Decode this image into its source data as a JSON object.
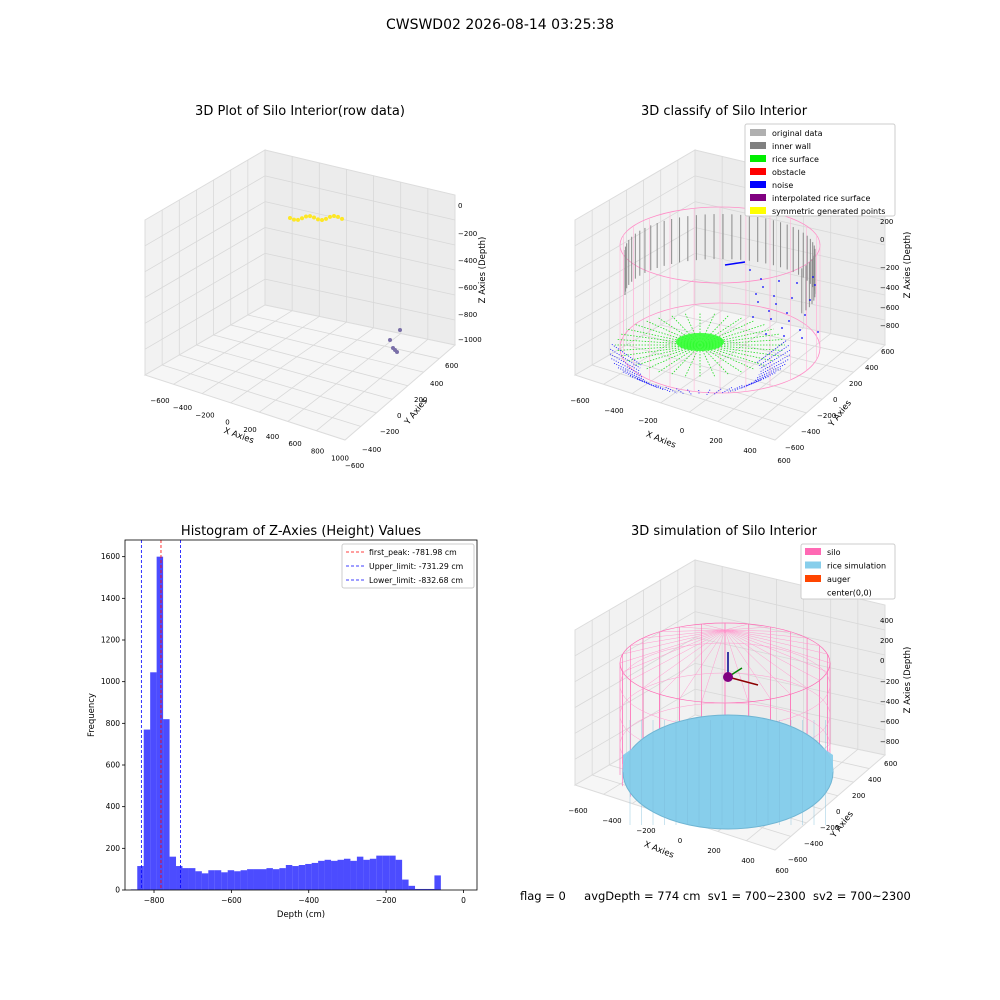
{
  "figure": {
    "suptitle": "CWSWD02 2026-08-14 03:25:38",
    "footer": {
      "flag": "flag = 0",
      "avg_depth": "avgDepth = 774 cm",
      "sv1": "sv1 = 700~2300",
      "sv2": "sv2 = 700~2300"
    }
  },
  "chart_data": [
    {
      "type": "scatter",
      "projection": "3d",
      "title": "3D Plot of Silo Interior(row data)",
      "xlabel": "X Axies",
      "ylabel": "Y Axies",
      "zlabel": "Z Axies (Depth)",
      "x_ticks": [
        "−600",
        "−400",
        "−200",
        "0",
        "200",
        "400",
        "600",
        "800",
        "1000"
      ],
      "y_ticks": [
        "−600",
        "−400",
        "−200",
        "0",
        "200",
        "400",
        "600"
      ],
      "z_ticks": [
        "0",
        "−200",
        "−400",
        "−600",
        "−800",
        "−1000"
      ],
      "colormap": "viridis",
      "description_points": "cylindrical wall scans colored by depth"
    },
    {
      "type": "scatter",
      "projection": "3d",
      "title": "3D classify of Silo Interior",
      "xlabel": "X Axies",
      "ylabel": "Y Axies",
      "zlabel": "Z Axies (Depth)",
      "x_ticks": [
        "−600",
        "−400",
        "−200",
        "0",
        "200",
        "400",
        "600"
      ],
      "y_ticks": [
        "−600",
        "−400",
        "−200",
        "0",
        "200",
        "400",
        "600"
      ],
      "z_ticks": [
        "200",
        "0",
        "−200",
        "−400",
        "−600",
        "−800"
      ],
      "legend": [
        {
          "label": "original data",
          "color": "#b0b0b0"
        },
        {
          "label": "inner wall",
          "color": "#808080"
        },
        {
          "label": "rice surface",
          "color": "#00ee00"
        },
        {
          "label": "obstacle",
          "color": "#ff0000"
        },
        {
          "label": "noise",
          "color": "#0000ff"
        },
        {
          "label": "interpolated rice surface",
          "color": "#800080"
        },
        {
          "label": "symmetric generated points",
          "color": "#ffff00"
        }
      ],
      "legend_position": "top-right"
    },
    {
      "type": "bar",
      "title": "Histogram of Z-Axies (Height) Values",
      "xlabel": "Depth (cm)",
      "ylabel": "Frequency",
      "xlim": [
        -875,
        35
      ],
      "ylim": [
        0,
        1680
      ],
      "x_ticks": [
        -800,
        -600,
        -400,
        -200,
        0
      ],
      "x_tick_labels": [
        "−800",
        "−600",
        "−400",
        "−200",
        "0"
      ],
      "y_ticks": [
        0,
        200,
        400,
        600,
        800,
        1000,
        1200,
        1400,
        1600
      ],
      "bin_width": 16.7,
      "bin_start": -860,
      "values": [
        3,
        115,
        770,
        1045,
        1600,
        820,
        160,
        115,
        105,
        105,
        90,
        80,
        95,
        95,
        85,
        95,
        90,
        95,
        100,
        100,
        100,
        105,
        100,
        105,
        120,
        115,
        120,
        125,
        130,
        140,
        145,
        140,
        145,
        150,
        140,
        160,
        145,
        150,
        165,
        165,
        165,
        145,
        50,
        20,
        5,
        5,
        5,
        70
      ],
      "bar_color": "#0000ff",
      "bar_alpha": 0.7,
      "lines": [
        {
          "label": "first_peak: -781.98 cm",
          "x": -781.98,
          "color": "#ff0000"
        },
        {
          "label": "Upper_limit: -731.29 cm",
          "x": -731.29,
          "color": "#0000ff"
        },
        {
          "label": "Lower_limit: -832.68 cm",
          "x": -832.68,
          "color": "#0000ff"
        }
      ],
      "legend_position": "top-right"
    },
    {
      "type": "scatter",
      "projection": "3d",
      "title": "3D simulation of Silo Interior",
      "xlabel": "X Axies",
      "ylabel": "Y Axies",
      "zlabel": "Z Axies (Depth)",
      "x_ticks": [
        "−600",
        "−400",
        "−200",
        "0",
        "200",
        "400",
        "600"
      ],
      "y_ticks": [
        "−600",
        "−400",
        "−200",
        "0",
        "200",
        "400",
        "600"
      ],
      "z_ticks": [
        "400",
        "200",
        "0",
        "−200",
        "−400",
        "−600",
        "−800"
      ],
      "legend": [
        {
          "label": "silo",
          "color": "#ff69b4"
        },
        {
          "label": "rice simulation",
          "color": "#87ceeb"
        },
        {
          "label": "auger",
          "color": "#ff4500"
        },
        {
          "label": "center(0,0)",
          "color": "none"
        }
      ],
      "legend_position": "top-right"
    }
  ]
}
